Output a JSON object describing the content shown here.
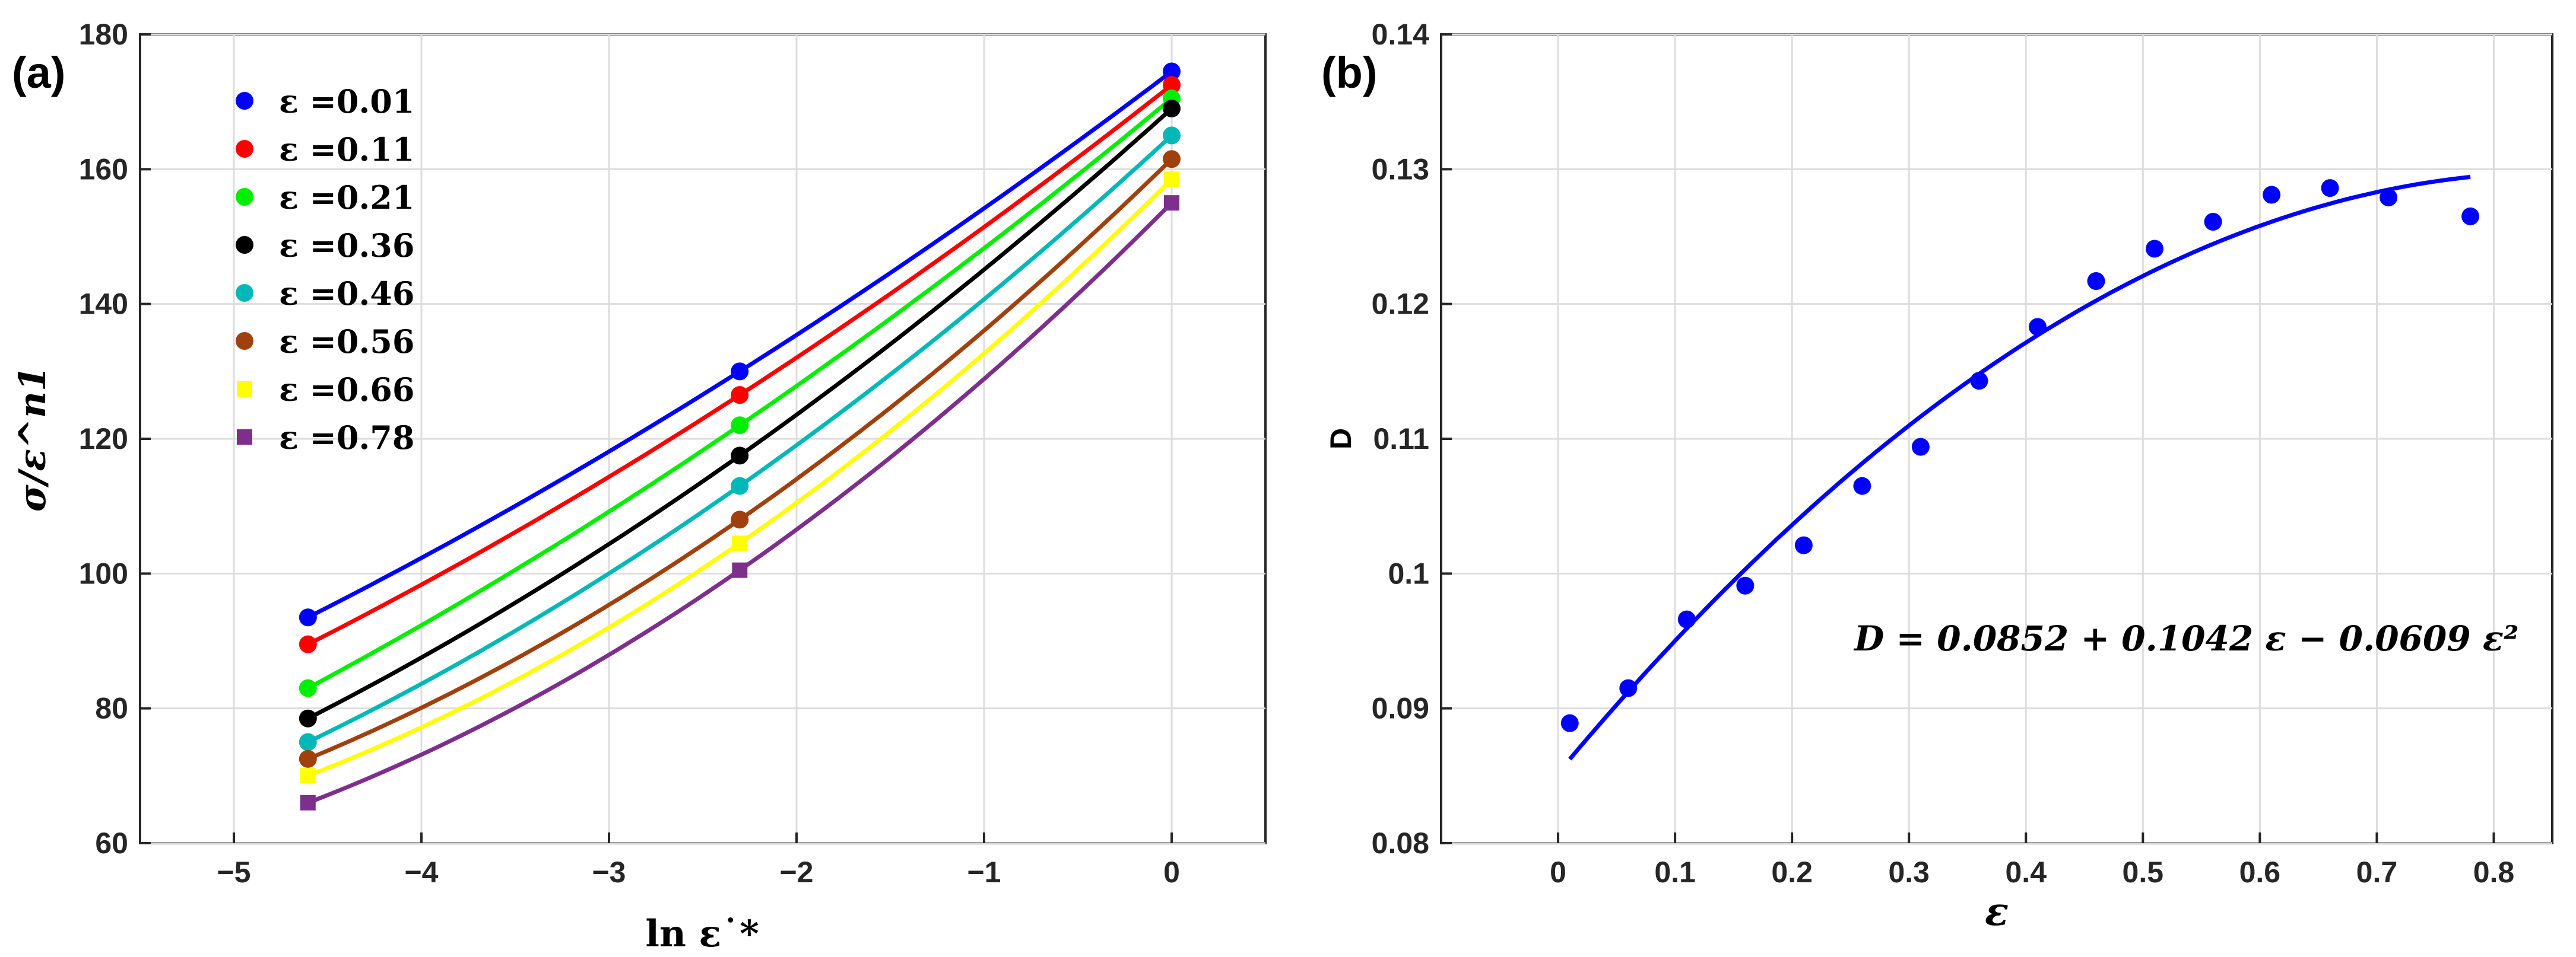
{
  "figure": {
    "panel_a_label": "(a)",
    "panel_b_label": "(b)"
  },
  "chart_data": [
    {
      "panel": "(a)",
      "type": "line",
      "title": "",
      "xlabel": "ln ε˙*",
      "ylabel": "σ/ε^n1",
      "xlim": [
        -5.5,
        0.5
      ],
      "ylim": [
        60,
        180
      ],
      "xticks": [
        -5,
        -4,
        -3,
        -2,
        -1,
        0
      ],
      "xtick_labels": [
        "−5",
        "−4",
        "−3",
        "−2",
        "−1",
        "0"
      ],
      "yticks": [
        60,
        80,
        100,
        120,
        140,
        160,
        180
      ],
      "ytick_labels": [
        "60",
        "80",
        "100",
        "120",
        "140",
        "160",
        "180"
      ],
      "grid": true,
      "legend_position": "top-left",
      "x": [
        -4.605,
        -2.303,
        0
      ],
      "series": [
        {
          "name": "ε =0.01",
          "color": "#0000ff",
          "marker": "circle",
          "values": [
            93.5,
            130.0,
            174.5
          ]
        },
        {
          "name": "ε =0.11",
          "color": "#ff0000",
          "marker": "circle",
          "values": [
            89.5,
            126.5,
            172.5
          ]
        },
        {
          "name": "ε =0.21",
          "color": "#00ee00",
          "marker": "circle",
          "values": [
            83.0,
            122.0,
            170.5
          ]
        },
        {
          "name": "ε =0.36",
          "color": "#000000",
          "marker": "circle",
          "values": [
            78.5,
            117.5,
            169.0
          ]
        },
        {
          "name": "ε =0.46",
          "color": "#00b8b8",
          "marker": "circle",
          "values": [
            75.0,
            113.0,
            165.0
          ]
        },
        {
          "name": "ε =0.56",
          "color": "#a0410d",
          "marker": "circle",
          "values": [
            72.5,
            108.0,
            161.5
          ]
        },
        {
          "name": "ε =0.66",
          "color": "#ffff00",
          "marker": "square",
          "values": [
            70.0,
            104.5,
            158.5
          ]
        },
        {
          "name": "ε =0.78",
          "color": "#7e2f8e",
          "marker": "square",
          "values": [
            66.0,
            100.5,
            155.0
          ]
        }
      ]
    },
    {
      "panel": "(b)",
      "type": "scatter",
      "title": "",
      "xlabel": "ε",
      "ylabel": "D",
      "xlim": [
        -0.1,
        0.85
      ],
      "ylim": [
        0.08,
        0.14
      ],
      "xticks": [
        0,
        0.1,
        0.2,
        0.3,
        0.4,
        0.5,
        0.6,
        0.7,
        0.8
      ],
      "xtick_labels": [
        "0",
        "0.1",
        "0.2",
        "0.3",
        "0.4",
        "0.5",
        "0.6",
        "0.7",
        "0.8"
      ],
      "yticks": [
        0.08,
        0.09,
        0.1,
        0.11,
        0.12,
        0.13,
        0.14
      ],
      "ytick_labels": [
        "0.08",
        "0.09",
        "0.1",
        "0.11",
        "0.12",
        "0.13",
        "0.14"
      ],
      "grid": true,
      "marker_color": "#0000ff",
      "points_x": [
        0.01,
        0.06,
        0.11,
        0.16,
        0.21,
        0.26,
        0.31,
        0.36,
        0.41,
        0.46,
        0.51,
        0.56,
        0.61,
        0.66,
        0.71,
        0.78
      ],
      "points_y": [
        0.0889,
        0.0915,
        0.0966,
        0.0991,
        0.1021,
        0.1065,
        0.1094,
        0.1143,
        0.1183,
        0.1217,
        0.1241,
        0.1261,
        0.1281,
        0.1286,
        0.1279,
        0.1265
      ],
      "fit": {
        "coefficients": [
          0.0852,
          0.1042,
          -0.0609
        ],
        "x_range": [
          0.01,
          0.78
        ],
        "color": "#0000ff",
        "equation_label": "D = 0.0852 + 0.1042 ε − 0.0609 ε²"
      }
    }
  ]
}
